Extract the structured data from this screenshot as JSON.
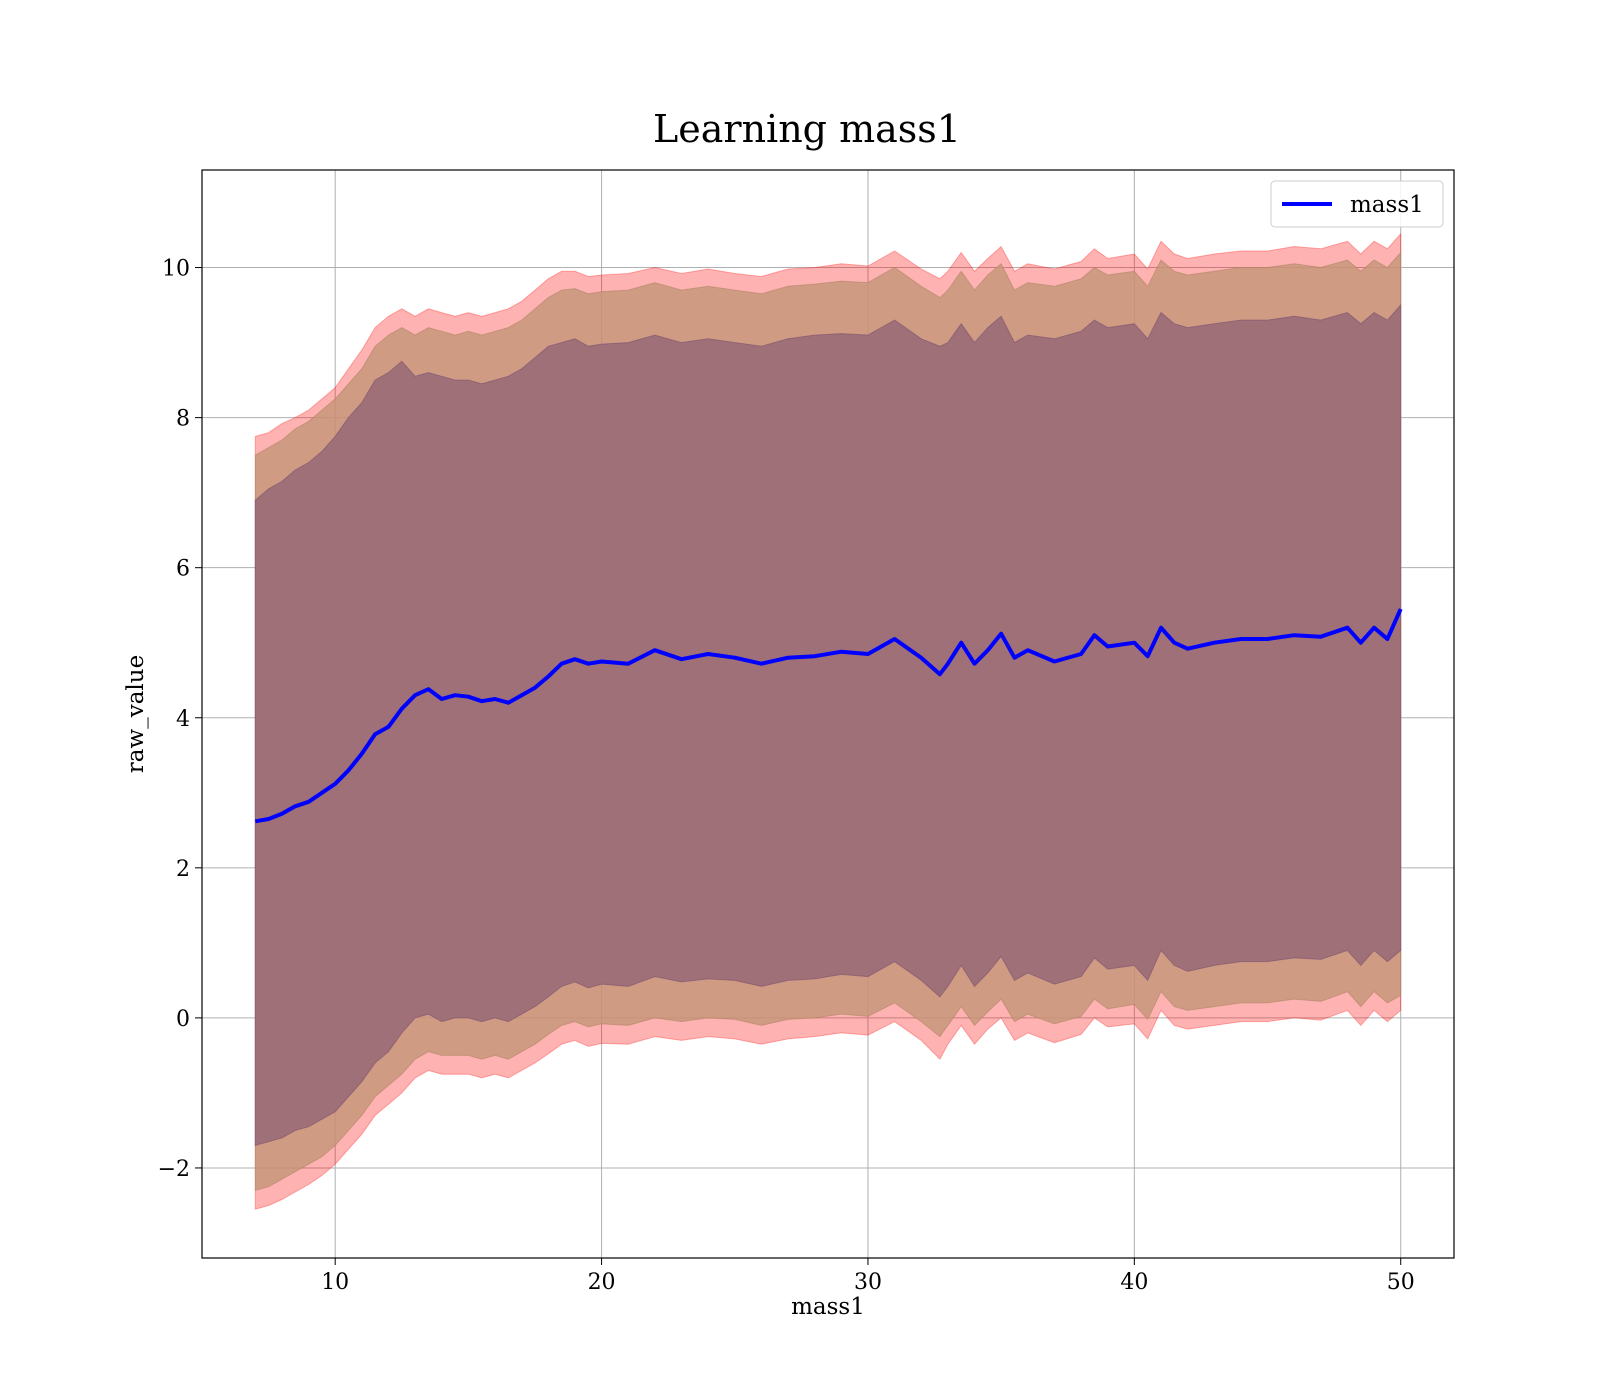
{
  "chart_data": {
    "type": "line",
    "title": "Learning mass1",
    "xlabel": "mass1",
    "ylabel": "raw_value",
    "xlim": [
      5,
      52
    ],
    "ylim": [
      -3.2,
      11.3
    ],
    "xticks": [
      10,
      20,
      30,
      40,
      50
    ],
    "yticks": [
      -2,
      0,
      2,
      4,
      6,
      8,
      10
    ],
    "ytick_labels": [
      "−2",
      "0",
      "2",
      "4",
      "6",
      "8",
      "10"
    ],
    "grid": true,
    "legend": {
      "placement": "top-right",
      "entries": [
        "mass1"
      ]
    },
    "colors": {
      "line": "#0000ff",
      "band_outer": "#ff0000",
      "band_mid": "#ff7f0e",
      "band_inner": "#8b3a52"
    },
    "series": [
      {
        "name": "mass1",
        "x": [
          7,
          7.5,
          8,
          8.5,
          9,
          9.5,
          10,
          10.5,
          11,
          11.5,
          12,
          12.5,
          13,
          13.5,
          14,
          14.5,
          15,
          15.5,
          16,
          16.5,
          17,
          17.5,
          18,
          18.5,
          19,
          19.5,
          20,
          21,
          22,
          23,
          24,
          25,
          26,
          27,
          28,
          29,
          30,
          31,
          32,
          32.7,
          33,
          33.5,
          34,
          34.5,
          35,
          35.5,
          36,
          37,
          38,
          38.5,
          39,
          40,
          40.5,
          41,
          41.5,
          42,
          43,
          44,
          45,
          46,
          47,
          48,
          48.5,
          49,
          49.5,
          50
        ],
        "mean": [
          2.62,
          2.65,
          2.72,
          2.82,
          2.88,
          3.0,
          3.12,
          3.3,
          3.52,
          3.78,
          3.88,
          4.12,
          4.3,
          4.38,
          4.25,
          4.3,
          4.28,
          4.22,
          4.25,
          4.2,
          4.3,
          4.4,
          4.55,
          4.72,
          4.78,
          4.72,
          4.75,
          4.72,
          4.9,
          4.78,
          4.85,
          4.8,
          4.72,
          4.8,
          4.82,
          4.88,
          4.85,
          5.05,
          4.8,
          4.58,
          4.72,
          5.0,
          4.72,
          4.9,
          5.12,
          4.8,
          4.9,
          4.75,
          4.85,
          5.1,
          4.95,
          5.0,
          4.82,
          5.2,
          5.0,
          4.92,
          5.0,
          5.05,
          5.05,
          5.1,
          5.08,
          5.2,
          5.0,
          5.2,
          5.05,
          5.45
        ],
        "band_inner_upper": [
          6.9,
          7.05,
          7.15,
          7.3,
          7.4,
          7.55,
          7.75,
          8.0,
          8.2,
          8.5,
          8.6,
          8.75,
          8.55,
          8.6,
          8.55,
          8.5,
          8.5,
          8.45,
          8.5,
          8.55,
          8.65,
          8.8,
          8.95,
          9.0,
          9.05,
          8.95,
          8.98,
          9.0,
          9.1,
          9.0,
          9.05,
          9.0,
          8.95,
          9.05,
          9.1,
          9.12,
          9.1,
          9.3,
          9.05,
          8.95,
          9.0,
          9.25,
          9.0,
          9.2,
          9.35,
          9.0,
          9.1,
          9.05,
          9.15,
          9.3,
          9.2,
          9.25,
          9.05,
          9.4,
          9.25,
          9.2,
          9.25,
          9.3,
          9.3,
          9.35,
          9.3,
          9.4,
          9.25,
          9.4,
          9.3,
          9.5
        ],
        "band_inner_lower": [
          -1.7,
          -1.65,
          -1.6,
          -1.5,
          -1.45,
          -1.35,
          -1.25,
          -1.05,
          -0.85,
          -0.6,
          -0.45,
          -0.2,
          0.0,
          0.05,
          -0.05,
          0.0,
          0.0,
          -0.05,
          0.0,
          -0.05,
          0.05,
          0.15,
          0.28,
          0.42,
          0.48,
          0.4,
          0.45,
          0.42,
          0.55,
          0.48,
          0.52,
          0.5,
          0.42,
          0.5,
          0.52,
          0.58,
          0.55,
          0.75,
          0.5,
          0.28,
          0.42,
          0.7,
          0.42,
          0.6,
          0.82,
          0.5,
          0.6,
          0.45,
          0.55,
          0.8,
          0.65,
          0.7,
          0.5,
          0.9,
          0.7,
          0.62,
          0.7,
          0.75,
          0.75,
          0.8,
          0.78,
          0.9,
          0.7,
          0.9,
          0.75,
          0.9
        ],
        "band_mid_upper": [
          7.5,
          7.6,
          7.7,
          7.85,
          7.95,
          8.1,
          8.25,
          8.45,
          8.65,
          8.95,
          9.1,
          9.2,
          9.1,
          9.2,
          9.15,
          9.1,
          9.15,
          9.1,
          9.15,
          9.2,
          9.3,
          9.45,
          9.6,
          9.7,
          9.72,
          9.65,
          9.68,
          9.7,
          9.8,
          9.7,
          9.75,
          9.7,
          9.65,
          9.75,
          9.78,
          9.82,
          9.8,
          10.0,
          9.75,
          9.6,
          9.7,
          9.95,
          9.7,
          9.9,
          10.05,
          9.7,
          9.8,
          9.75,
          9.85,
          10.0,
          9.9,
          9.95,
          9.75,
          10.1,
          9.95,
          9.9,
          9.95,
          10.0,
          10.0,
          10.05,
          10.0,
          10.1,
          9.95,
          10.1,
          10.0,
          10.2
        ],
        "band_mid_lower": [
          -2.3,
          -2.25,
          -2.15,
          -2.05,
          -1.95,
          -1.85,
          -1.7,
          -1.5,
          -1.3,
          -1.05,
          -0.9,
          -0.75,
          -0.55,
          -0.45,
          -0.5,
          -0.5,
          -0.5,
          -0.55,
          -0.5,
          -0.55,
          -0.45,
          -0.35,
          -0.22,
          -0.1,
          -0.05,
          -0.12,
          -0.08,
          -0.1,
          0.0,
          -0.05,
          0.0,
          -0.02,
          -0.1,
          -0.02,
          0.0,
          0.05,
          0.02,
          0.2,
          -0.05,
          -0.25,
          -0.1,
          0.15,
          -0.1,
          0.08,
          0.25,
          -0.05,
          0.05,
          -0.08,
          0.02,
          0.25,
          0.12,
          0.18,
          -0.02,
          0.35,
          0.15,
          0.1,
          0.15,
          0.2,
          0.2,
          0.25,
          0.22,
          0.35,
          0.15,
          0.35,
          0.2,
          0.3
        ],
        "band_outer_upper": [
          7.75,
          7.8,
          7.92,
          8.0,
          8.1,
          8.25,
          8.4,
          8.65,
          8.9,
          9.2,
          9.35,
          9.45,
          9.35,
          9.45,
          9.4,
          9.35,
          9.4,
          9.35,
          9.4,
          9.45,
          9.55,
          9.7,
          9.85,
          9.95,
          9.95,
          9.88,
          9.9,
          9.92,
          10.0,
          9.92,
          9.98,
          9.92,
          9.88,
          9.98,
          10.0,
          10.05,
          10.02,
          10.22,
          9.98,
          9.85,
          9.95,
          10.2,
          9.95,
          10.12,
          10.28,
          9.95,
          10.05,
          9.98,
          10.08,
          10.25,
          10.12,
          10.18,
          9.98,
          10.35,
          10.18,
          10.12,
          10.18,
          10.22,
          10.22,
          10.28,
          10.25,
          10.35,
          10.18,
          10.35,
          10.25,
          10.45
        ],
        "band_outer_lower": [
          -2.55,
          -2.5,
          -2.42,
          -2.32,
          -2.22,
          -2.1,
          -1.95,
          -1.75,
          -1.55,
          -1.3,
          -1.15,
          -1.0,
          -0.8,
          -0.7,
          -0.75,
          -0.75,
          -0.75,
          -0.8,
          -0.75,
          -0.8,
          -0.7,
          -0.6,
          -0.48,
          -0.35,
          -0.3,
          -0.38,
          -0.34,
          -0.35,
          -0.25,
          -0.3,
          -0.25,
          -0.28,
          -0.35,
          -0.28,
          -0.25,
          -0.2,
          -0.23,
          -0.05,
          -0.3,
          -0.55,
          -0.35,
          -0.1,
          -0.35,
          -0.15,
          0.0,
          -0.3,
          -0.2,
          -0.33,
          -0.22,
          0.0,
          -0.12,
          -0.08,
          -0.28,
          0.1,
          -0.1,
          -0.15,
          -0.1,
          -0.05,
          -0.05,
          0.0,
          -0.03,
          0.1,
          -0.1,
          0.1,
          -0.05,
          0.1
        ]
      }
    ]
  }
}
